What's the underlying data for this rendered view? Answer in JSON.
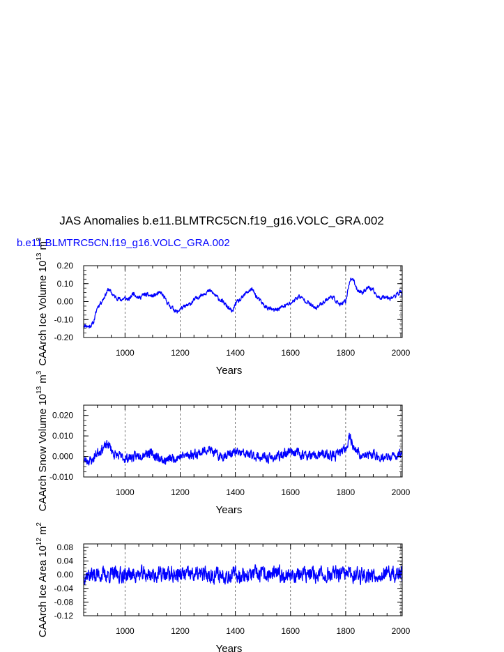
{
  "figure": {
    "title": "JAS Anomalies b.e11.BLMTRC5CN.f19_g16.VOLC_GRA.002",
    "case_label": "b.e11.BLMTRC5CN.f19_g16.VOLC_GRA.002",
    "title_color": "#000000",
    "case_color": "#0000ff",
    "line_color": "#0000ff"
  },
  "chart_data": [
    {
      "type": "line",
      "name": "ice-volume",
      "ylabel": "CAArch Ice Volume 10",
      "ylabel_exp": "13",
      "ylabel_unit": "m",
      "ylabel_unit_exp": "3",
      "xlabel": "Years",
      "xlim": [
        850,
        2005
      ],
      "ylim": [
        -0.2,
        0.2
      ],
      "xticks": [
        1000,
        1200,
        1400,
        1600,
        1800,
        2000
      ],
      "xtick_labels": [
        "1000",
        "1200",
        "1400",
        "1600",
        "1800",
        "2000"
      ],
      "yticks": [
        -0.2,
        -0.1,
        0.0,
        0.1,
        0.2
      ],
      "ytick_labels": [
        "-0.20",
        "-0.10",
        "0.00",
        "0.10",
        "0.20"
      ],
      "keypoints": [
        [
          850,
          -0.13
        ],
        [
          870,
          -0.14
        ],
        [
          885,
          -0.12
        ],
        [
          900,
          -0.03
        ],
        [
          915,
          0.0
        ],
        [
          930,
          0.04
        ],
        [
          940,
          0.07
        ],
        [
          960,
          0.03
        ],
        [
          985,
          0.01
        ],
        [
          1000,
          0.02
        ],
        [
          1015,
          0.01
        ],
        [
          1030,
          0.05
        ],
        [
          1050,
          0.02
        ],
        [
          1070,
          0.04
        ],
        [
          1100,
          0.03
        ],
        [
          1130,
          0.05
        ],
        [
          1160,
          -0.02
        ],
        [
          1190,
          -0.06
        ],
        [
          1200,
          -0.04
        ],
        [
          1230,
          -0.02
        ],
        [
          1260,
          0.02
        ],
        [
          1290,
          0.05
        ],
        [
          1310,
          0.06
        ],
        [
          1330,
          0.03
        ],
        [
          1360,
          -0.01
        ],
        [
          1390,
          -0.06
        ],
        [
          1400,
          -0.01
        ],
        [
          1420,
          0.01
        ],
        [
          1440,
          0.05
        ],
        [
          1460,
          0.07
        ],
        [
          1480,
          0.02
        ],
        [
          1510,
          -0.03
        ],
        [
          1540,
          -0.05
        ],
        [
          1570,
          -0.03
        ],
        [
          1600,
          -0.01
        ],
        [
          1630,
          0.03
        ],
        [
          1660,
          0.0
        ],
        [
          1690,
          -0.04
        ],
        [
          1720,
          0.0
        ],
        [
          1750,
          0.03
        ],
        [
          1780,
          -0.02
        ],
        [
          1800,
          0.0
        ],
        [
          1815,
          0.12
        ],
        [
          1825,
          0.13
        ],
        [
          1840,
          0.07
        ],
        [
          1860,
          0.05
        ],
        [
          1880,
          0.08
        ],
        [
          1900,
          0.06
        ],
        [
          1920,
          0.02
        ],
        [
          1940,
          0.03
        ],
        [
          1960,
          0.02
        ],
        [
          1980,
          0.03
        ],
        [
          2000,
          0.06
        ],
        [
          2005,
          0.03
        ]
      ],
      "noise": 0.018,
      "seed": 11
    },
    {
      "type": "line",
      "name": "snow-volume",
      "ylabel": "CAArch Snow Volume 10",
      "ylabel_exp": "13",
      "ylabel_unit": "m",
      "ylabel_unit_exp": "3",
      "xlabel": "Years",
      "xlim": [
        850,
        2005
      ],
      "ylim": [
        -0.01,
        0.025
      ],
      "xticks": [
        1000,
        1200,
        1400,
        1600,
        1800,
        2000
      ],
      "xtick_labels": [
        "1000",
        "1200",
        "1400",
        "1600",
        "1800",
        "2000"
      ],
      "yticks": [
        -0.01,
        0.0,
        0.01,
        0.02
      ],
      "ytick_labels": [
        "-0.010",
        "0.000",
        "0.010",
        "0.020"
      ],
      "keypoints": [
        [
          850,
          -0.002
        ],
        [
          880,
          -0.002
        ],
        [
          900,
          0.002
        ],
        [
          920,
          0.004
        ],
        [
          940,
          0.006
        ],
        [
          960,
          0.001
        ],
        [
          1000,
          -0.001
        ],
        [
          1040,
          0.0
        ],
        [
          1080,
          0.002
        ],
        [
          1100,
          0.001
        ],
        [
          1140,
          -0.002
        ],
        [
          1200,
          0.0
        ],
        [
          1240,
          0.001
        ],
        [
          1280,
          0.002
        ],
        [
          1300,
          0.004
        ],
        [
          1340,
          0.0
        ],
        [
          1400,
          0.002
        ],
        [
          1440,
          0.001
        ],
        [
          1480,
          0.0
        ],
        [
          1520,
          -0.001
        ],
        [
          1560,
          0.0
        ],
        [
          1600,
          0.003
        ],
        [
          1640,
          0.001
        ],
        [
          1680,
          0.0
        ],
        [
          1720,
          0.001
        ],
        [
          1760,
          0.0
        ],
        [
          1800,
          0.004
        ],
        [
          1815,
          0.01
        ],
        [
          1830,
          0.004
        ],
        [
          1860,
          0.0
        ],
        [
          1900,
          0.001
        ],
        [
          1940,
          -0.001
        ],
        [
          1980,
          0.0
        ],
        [
          2005,
          0.002
        ]
      ],
      "noise": 0.0035,
      "seed": 23
    },
    {
      "type": "line",
      "name": "ice-area",
      "ylabel": "CAArch Ice Area 10",
      "ylabel_exp": "12",
      "ylabel_unit": "m",
      "ylabel_unit_exp": "2",
      "xlabel": "Years",
      "xlim": [
        850,
        2005
      ],
      "ylim": [
        -0.12,
        0.09
      ],
      "xticks": [
        1000,
        1200,
        1400,
        1600,
        1800,
        2000
      ],
      "xtick_labels": [
        "1000",
        "1200",
        "1400",
        "1600",
        "1800",
        "2000"
      ],
      "yticks": [
        -0.12,
        -0.08,
        -0.04,
        0.0,
        0.04,
        0.08
      ],
      "ytick_labels": [
        "-0.12",
        "-0.08",
        "-0.04",
        "0.00",
        "0.04",
        "0.08"
      ],
      "keypoints": [
        [
          850,
          0.0
        ],
        [
          1000,
          0.0
        ],
        [
          1200,
          0.0
        ],
        [
          1400,
          0.0
        ],
        [
          1600,
          0.0
        ],
        [
          1800,
          0.0
        ],
        [
          2005,
          0.0
        ]
      ],
      "noise": 0.035,
      "seed": 37
    }
  ]
}
